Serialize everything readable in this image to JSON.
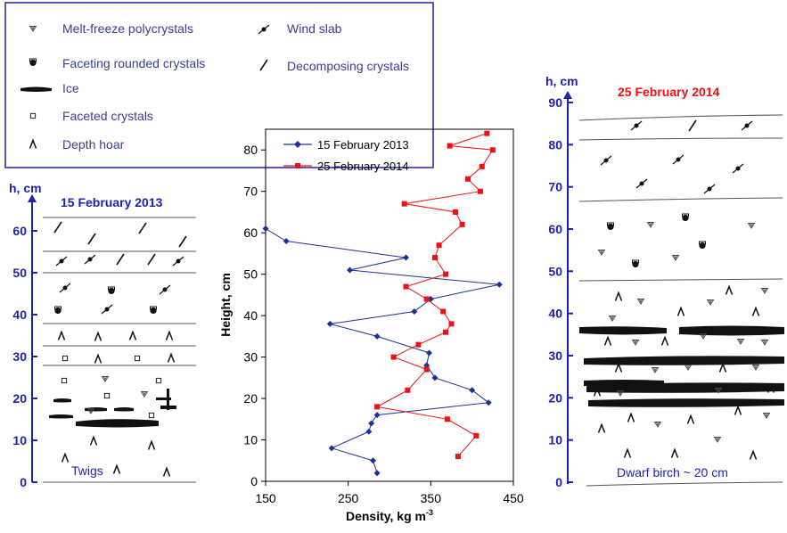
{
  "colors": {
    "axis_blue": "#1f1fb0",
    "legend_text": "#3c3c96",
    "red_title": "#ee1111",
    "series_2013": "#1f2f9a",
    "series_2014": "#ee1111"
  },
  "legend": {
    "items": [
      {
        "symbol": "melt-freeze-icon",
        "label": "Melt-freeze polycrystals"
      },
      {
        "symbol": "faceting-rounded-icon",
        "label": "Faceting rounded crystals"
      },
      {
        "symbol": "ice-icon",
        "label": "Ice"
      },
      {
        "symbol": "faceted-icon",
        "label": "Faceted crystals"
      },
      {
        "symbol": "depth-hoar-icon",
        "label": "Depth hoar"
      },
      {
        "symbol": "wind-slab-icon",
        "label": "Wind slab"
      },
      {
        "symbol": "decomposing-icon",
        "label": "Decomposing crystals"
      }
    ]
  },
  "left_profile": {
    "title": "15 February 2013",
    "axis_label": "h, cm",
    "ticks": [
      "0",
      "10",
      "20",
      "30",
      "40",
      "50",
      "60"
    ],
    "bottom_note": "Twigs"
  },
  "right_profile": {
    "title": "25 February 2014",
    "axis_label": "h, cm",
    "ticks": [
      "0",
      "10",
      "20",
      "30",
      "40",
      "50",
      "60",
      "70",
      "80",
      "90"
    ],
    "bottom_note": "Dwarf birch ~ 20 cm"
  },
  "chart_data": {
    "type": "line",
    "title": "",
    "xlabel": "Density, kg m",
    "xlabel_sup": "-3",
    "ylabel": "Height, cm",
    "xlim": [
      150,
      450
    ],
    "ylim": [
      0,
      85
    ],
    "xticks": [
      "150",
      "250",
      "350",
      "450"
    ],
    "yticks": [
      "0",
      "10",
      "20",
      "30",
      "40",
      "50",
      "60",
      "70",
      "80"
    ],
    "grid": false,
    "legend_position": "top-left",
    "series": [
      {
        "name": "15 February 2013",
        "color": "#1f2f9a",
        "marker": "diamond",
        "points": [
          [
            285,
            2
          ],
          [
            280,
            5
          ],
          [
            230,
            8
          ],
          [
            275,
            12
          ],
          [
            278,
            14
          ],
          [
            285,
            16
          ],
          [
            420,
            19
          ],
          [
            400,
            22
          ],
          [
            355,
            25
          ],
          [
            345,
            28
          ],
          [
            348,
            31
          ],
          [
            285,
            35
          ],
          [
            228,
            38
          ],
          [
            330,
            41
          ],
          [
            350,
            44
          ],
          [
            433,
            47.5
          ],
          [
            252,
            51
          ],
          [
            320,
            54
          ],
          [
            175,
            58
          ],
          [
            150,
            61
          ]
        ]
      },
      {
        "name": "25 February 2014",
        "color": "#ee1111",
        "marker": "square",
        "points": [
          [
            383,
            6
          ],
          [
            405,
            11
          ],
          [
            370,
            15
          ],
          [
            285,
            18
          ],
          [
            322,
            22
          ],
          [
            345,
            27
          ],
          [
            305,
            30
          ],
          [
            335,
            33
          ],
          [
            368,
            36
          ],
          [
            375,
            38
          ],
          [
            365,
            41
          ],
          [
            345,
            44
          ],
          [
            320,
            47
          ],
          [
            368,
            50
          ],
          [
            355,
            54
          ],
          [
            360,
            57
          ],
          [
            388,
            62
          ],
          [
            380,
            65
          ],
          [
            318,
            67
          ],
          [
            410,
            70
          ],
          [
            395,
            73
          ],
          [
            412,
            76
          ],
          [
            425,
            80
          ],
          [
            373,
            81
          ],
          [
            418,
            84
          ]
        ]
      }
    ]
  }
}
